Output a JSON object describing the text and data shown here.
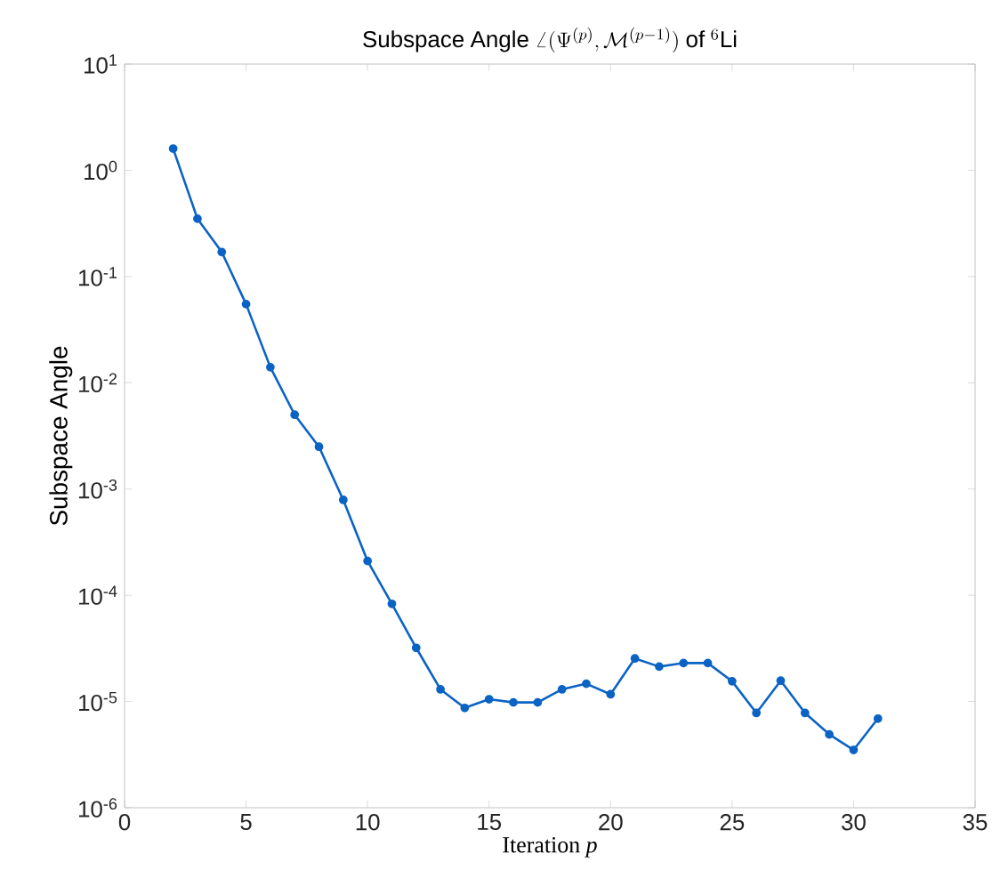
{
  "chart_data": {
    "type": "line",
    "title": "\\mathrm{Subspace\\ Angle}\\ \\angle(\\Psi^{(p)},\\mathcal{M}^{(p-1)})\\ \\mathrm{of}\\ {}^{6}\\mathrm{Li}",
    "xlabel": "Iteration *p*",
    "ylabel": "Subspace Angle",
    "log": "y",
    "marker": "circle",
    "line_style": "solid",
    "grid": false,
    "x": [
      2,
      3,
      4,
      5,
      6,
      7,
      8,
      9,
      10,
      11,
      12,
      13,
      14,
      15,
      16,
      17,
      18,
      19,
      20,
      21,
      22,
      23,
      24,
      25,
      26,
      27,
      28,
      29,
      30,
      31
    ],
    "series": [
      {
        "color": "#0b63c4",
        "values": [
          1.6,
          0.35,
          0.17,
          0.055,
          0.014,
          0.005,
          0.0025,
          0.00079,
          0.00021,
          8.3e-05,
          3.2e-05,
          1.3e-05,
          8.7e-06,
          1.05e-05,
          9.8e-06,
          9.8e-06,
          1.3e-05,
          1.47e-05,
          1.17e-05,
          2.54e-05,
          2.13e-05,
          2.3e-05,
          2.3e-05,
          1.55e-05,
          7.8e-06,
          1.57e-05,
          7.8e-06,
          4.9e-06,
          3.5e-06,
          6.9e-06
        ]
      }
    ],
    "xlim": [
      0,
      35
    ],
    "xticks": [
      0,
      5,
      10,
      15,
      20,
      25,
      30,
      35
    ],
    "ylim": [
      1e-06,
      10
    ],
    "yticks": [
      {
        "value": 1e-06,
        "label": "10$^{-6}$"
      },
      {
        "value": 1e-05,
        "label": "10$^{-5}$"
      },
      {
        "value": 0.0001,
        "label": "10$^{-4}$"
      },
      {
        "value": 0.001,
        "label": "10$^{-3}$"
      },
      {
        "value": 0.01,
        "label": "10$^{-2}$"
      },
      {
        "value": 0.1,
        "label": "10$^{-1}$"
      },
      {
        "value": 1,
        "label": "10$^{0}$"
      },
      {
        "value": 10,
        "label": "10$^{1}$"
      }
    ]
  }
}
